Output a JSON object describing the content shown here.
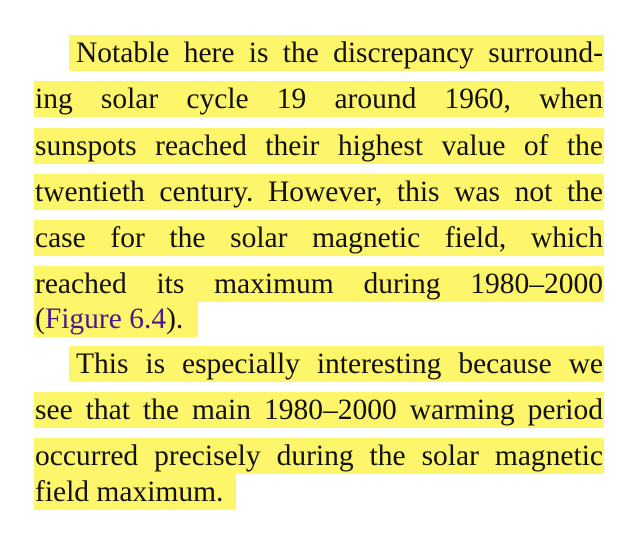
{
  "paragraphs": [
    {
      "lines": [
        "Notable here is the discrepancy surround-",
        "ing solar cycle 19 around 1960, when",
        "sunspots reached their highest value of the",
        "twentieth century. However, this was not the",
        "case for the solar magnetic field, which",
        "reached its maximum during 1980–2000"
      ],
      "last_line": {
        "open_paren": "(",
        "link_text": "Figure 6.4",
        "close": ")."
      }
    },
    {
      "lines": [
        "This is especially interesting because we",
        "see that the main 1980–2000 warming period",
        "occurred precisely during the solar magnetic",
        "field maximum."
      ]
    }
  ],
  "colors": {
    "highlight": "#fdf56a",
    "text": "#111111",
    "link": "#4a1a8c",
    "background": "#ffffff"
  }
}
